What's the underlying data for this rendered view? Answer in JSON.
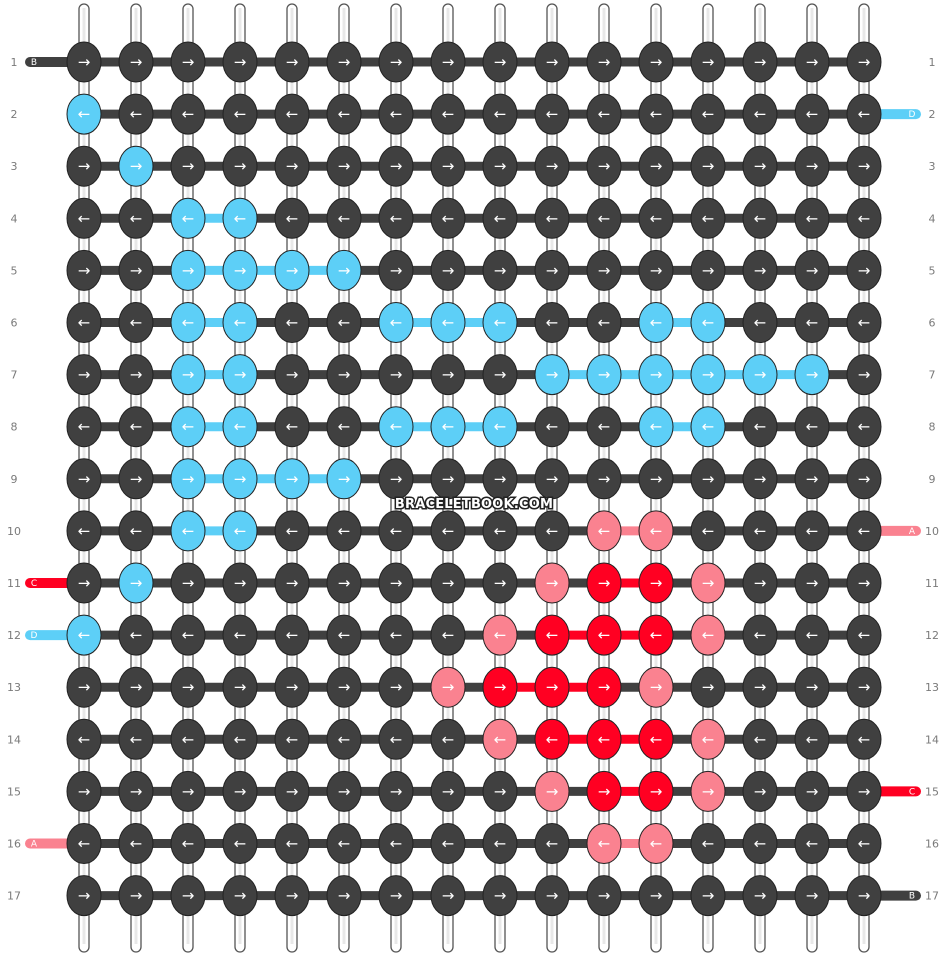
{
  "watermark": "BRACELETBOOK.COM",
  "colors": {
    "A": "#fa8290",
    "B": "#404040",
    "C": "#ff0022",
    "D": "#5dcff7"
  },
  "row_labels": [
    "1",
    "2",
    "3",
    "4",
    "5",
    "6",
    "7",
    "8",
    "9",
    "10",
    "11",
    "12",
    "13",
    "14",
    "15",
    "16",
    "17"
  ],
  "strand_ends": {
    "left": [
      {
        "row": 1,
        "letter": "B",
        "color": "B"
      },
      {
        "row": 11,
        "letter": "C",
        "color": "C"
      },
      {
        "row": 12,
        "letter": "D",
        "color": "D"
      },
      {
        "row": 16,
        "letter": "A",
        "color": "A"
      }
    ],
    "right": [
      {
        "row": 2,
        "letter": "D",
        "color": "D"
      },
      {
        "row": 10,
        "letter": "A",
        "color": "A"
      },
      {
        "row": 15,
        "letter": "C",
        "color": "C"
      },
      {
        "row": 17,
        "letter": "B",
        "color": "B"
      }
    ]
  },
  "knot_rows": [
    "BBBBBBBBBBBBBBBB",
    "DBBBBBBBBBBBBBBB",
    "BDBBBBBBBBBBBBBB",
    "BBDDBBBBBBBBBBBB",
    "BBDDDDBBBBBBBBBB",
    "BBDDBBDDDBBDDBBB",
    "BBDDBBBBBDDDDDDB",
    "BBDDBBDDDBBDDBBB",
    "BBDDDDBBBBBBBBBB",
    "BBDDBBBBBBAABBBB",
    "BDBBBBBBBACCABBB",
    "DBBBBBBBACCCABBB",
    "BBBBBBBACCCABBBB",
    "BBBBBBBBACCCABBB",
    "BBBBBBBBBACCABBB",
    "BBBBBBBBBBAABBBB",
    "BBBBBBBBBBBBBBBB"
  ],
  "arrow_glyphs": {
    "right": "→",
    "left": "←"
  }
}
